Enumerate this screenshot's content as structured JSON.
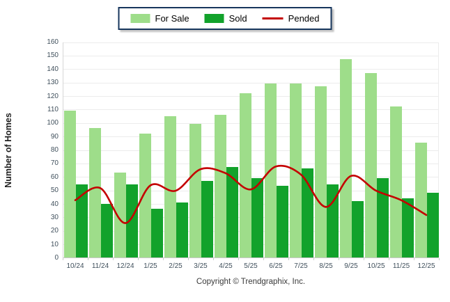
{
  "legend": {
    "items": [
      {
        "label": "For Sale",
        "swatch": "rect",
        "color": "#9edd8a"
      },
      {
        "label": "Sold",
        "swatch": "rect",
        "color": "#12a22b"
      },
      {
        "label": "Pended",
        "swatch": "line",
        "color": "#c40000"
      }
    ]
  },
  "chart_data": {
    "type": "bar",
    "subtype": "grouped-bars-with-line-overlay",
    "categories": [
      "10/24",
      "11/24",
      "12/24",
      "1/25",
      "2/25",
      "3/25",
      "4/25",
      "5/25",
      "6/25",
      "7/25",
      "8/25",
      "9/25",
      "10/25",
      "11/25",
      "12/25"
    ],
    "series": [
      {
        "name": "For Sale",
        "type": "bar",
        "color": "#9edd8a",
        "values": [
          109,
          96,
          63,
          92,
          105,
          99,
          106,
          122,
          129,
          129,
          127,
          147,
          137,
          112,
          85
        ]
      },
      {
        "name": "Sold",
        "type": "bar",
        "color": "#12a22b",
        "values": [
          54,
          40,
          54,
          36,
          41,
          57,
          67,
          59,
          53,
          66,
          54,
          42,
          59,
          44,
          48
        ]
      },
      {
        "name": "Pended",
        "type": "line",
        "color": "#c40000",
        "values": [
          43,
          52,
          26,
          54,
          50,
          66,
          63,
          51,
          68,
          62,
          38,
          61,
          50,
          43,
          32
        ]
      }
    ],
    "xlabel": "",
    "ylabel": "Number of Homes",
    "ylim": [
      0,
      160
    ],
    "ytick_step": 10,
    "grid": true,
    "gridline_color": "#ececec",
    "legend_position": "top-center"
  },
  "footer": {
    "copyright": "Copyright © Trendgraphix, Inc."
  }
}
